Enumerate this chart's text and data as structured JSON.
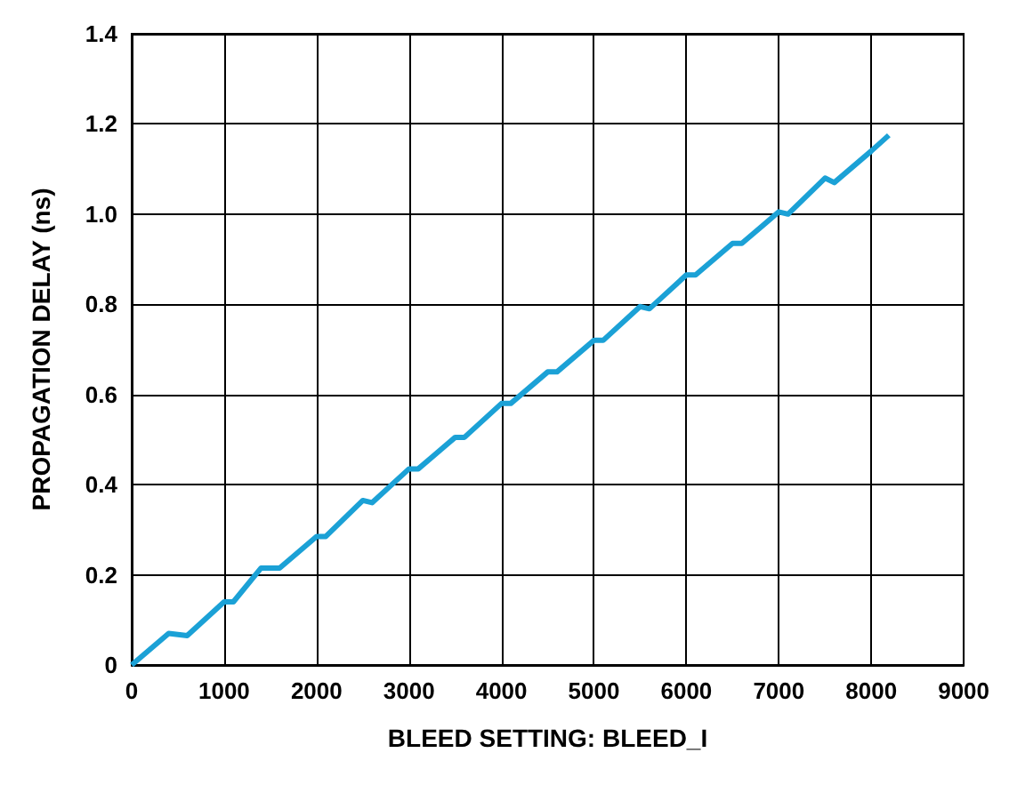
{
  "chart_data": {
    "type": "line",
    "xlabel": "BLEED SETTING: BLEED_I",
    "ylabel": "PROPAGATION DELAY (ns)",
    "xlim": [
      0,
      9000
    ],
    "xticks": [
      0,
      1000,
      2000,
      3000,
      4000,
      5000,
      6000,
      7000,
      8000,
      9000
    ],
    "ylim": [
      0,
      1.4
    ],
    "yticks": [
      {
        "value": 0,
        "label": "0"
      },
      {
        "value": 0.2,
        "label": "0.2"
      },
      {
        "value": 0.4,
        "label": "0.4"
      },
      {
        "value": 0.6,
        "label": "0.6"
      },
      {
        "value": 0.8,
        "label": "0.8"
      },
      {
        "value": 1.0,
        "label": "1.0"
      },
      {
        "value": 1.2,
        "label": "1.2"
      },
      {
        "value": 1.4,
        "label": "1.4"
      }
    ],
    "grid": true,
    "marker": "none",
    "line_style": "solid",
    "series": [
      {
        "color": "#1ba1d6",
        "x": [
          0,
          400,
          600,
          1000,
          1100,
          1400,
          1600,
          2000,
          2100,
          2500,
          2600,
          3000,
          3100,
          3500,
          3600,
          4000,
          4100,
          4500,
          4600,
          5000,
          5100,
          5500,
          5600,
          6000,
          6100,
          6500,
          6600,
          7000,
          7100,
          7300,
          7500,
          7600,
          8000,
          8190
        ],
        "values": [
          0,
          0.07,
          0.065,
          0.14,
          0.14,
          0.215,
          0.215,
          0.285,
          0.285,
          0.365,
          0.36,
          0.435,
          0.435,
          0.505,
          0.505,
          0.58,
          0.58,
          0.65,
          0.65,
          0.72,
          0.72,
          0.795,
          0.79,
          0.865,
          0.865,
          0.935,
          0.935,
          1.005,
          1.0,
          1.04,
          1.08,
          1.07,
          1.14,
          1.175
        ]
      }
    ]
  }
}
